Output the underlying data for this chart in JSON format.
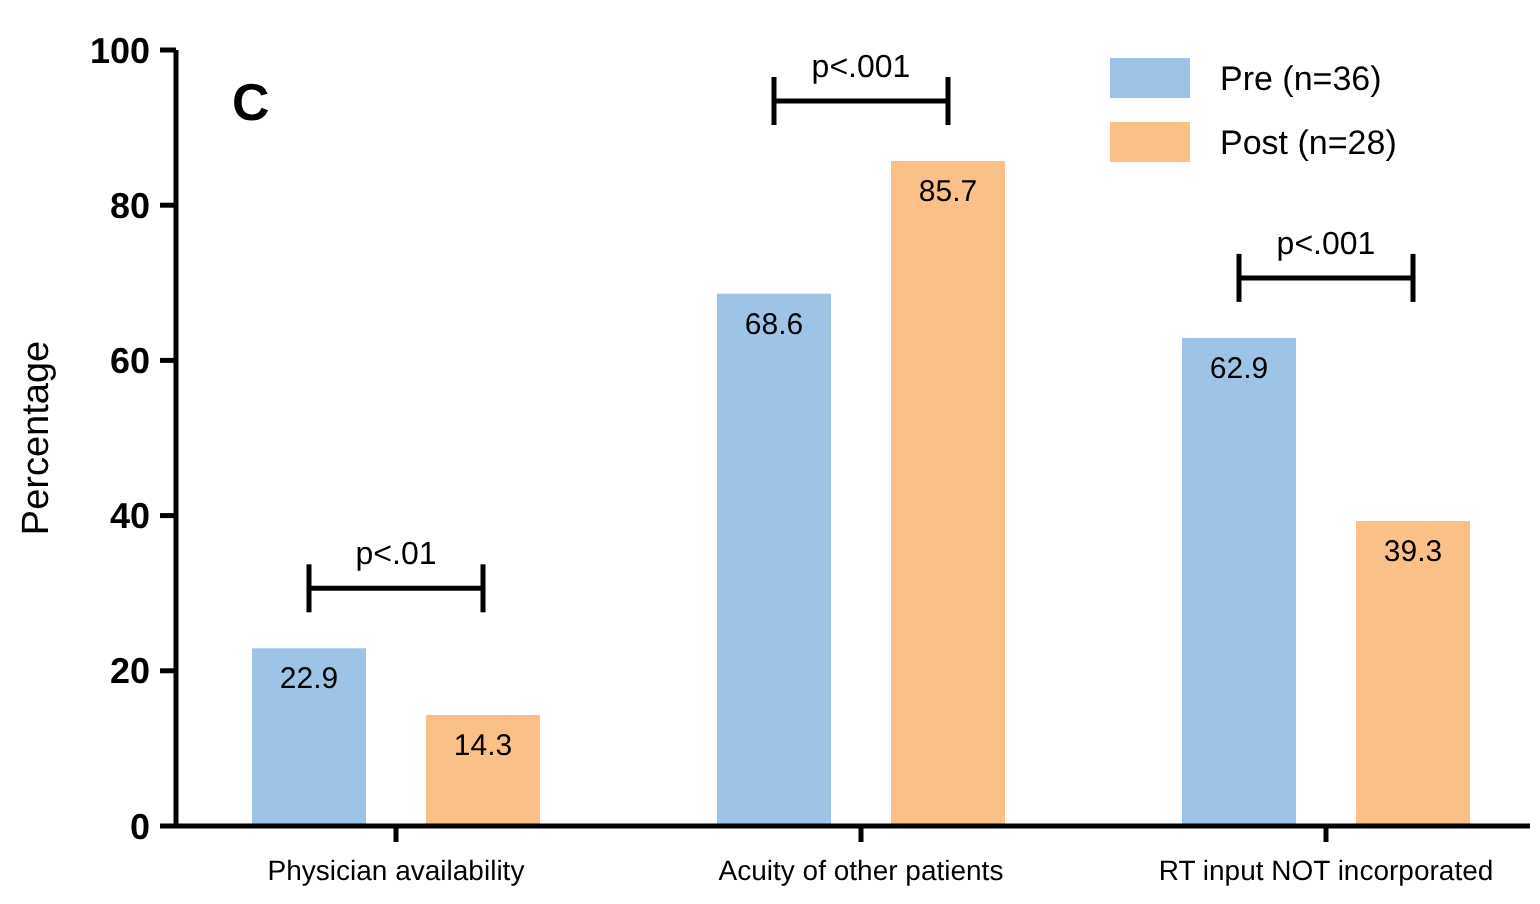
{
  "chart_data": {
    "type": "bar",
    "title": "C",
    "ylabel": "Percentage",
    "categories": [
      "Physician availability",
      "Acuity of other patients",
      "RT input NOT incorporated"
    ],
    "series": [
      {
        "name": "Pre (n=36)",
        "color": "#9dc3e6",
        "values": [
          22.9,
          68.6,
          62.9
        ]
      },
      {
        "name": "Post (n=28)",
        "color": "#f9c088",
        "values": [
          14.3,
          85.7,
          39.3
        ]
      }
    ],
    "ylim": [
      0,
      100
    ],
    "yticks": [
      0,
      20,
      40,
      60,
      80,
      100
    ],
    "grid": false,
    "legend": "top right",
    "data_labels": true,
    "annotations": [
      "p<.01",
      "p<.001",
      "p<.001"
    ]
  }
}
